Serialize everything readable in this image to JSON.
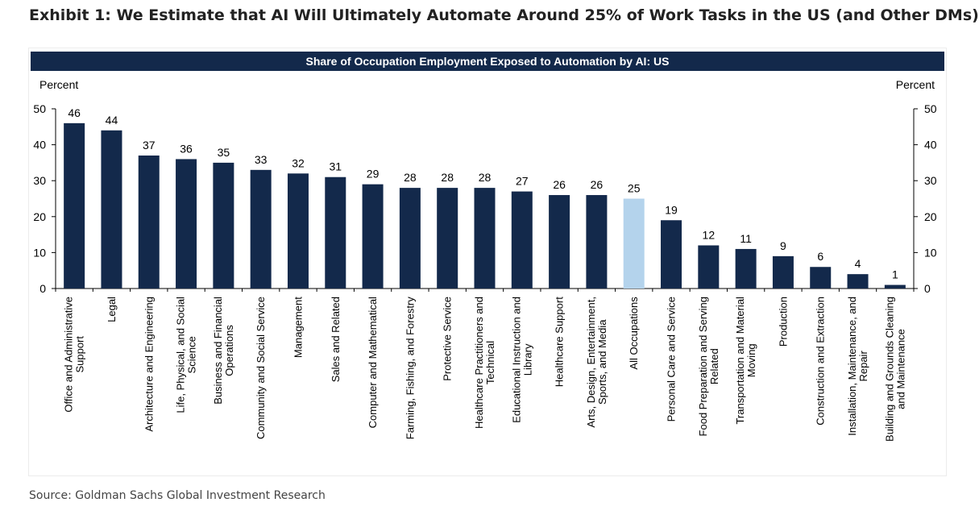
{
  "exhibit": {
    "title": "Exhibit 1: We Estimate that AI Will Ultimately Automate Around 25% of Work Tasks in the US (and Other DMs)",
    "source": "Source: Goldman Sachs Global Investment Research"
  },
  "colors": {
    "bar": "#13294b",
    "highlight_bar": "#b4d3ec",
    "banner": "#13294b"
  },
  "chart_data": {
    "type": "bar",
    "title": "Share of Occupation Employment Exposed to Automation by AI: US",
    "ylabel_left": "Percent",
    "ylabel_right": "Percent",
    "ylim": [
      0,
      50
    ],
    "yticks": [
      0,
      10,
      20,
      30,
      40,
      50
    ],
    "grid": false,
    "highlight_category": "All Occupations",
    "categories": [
      "Office and Administrative Support",
      "Legal",
      "Architecture and Engineering",
      "Life, Physical, and Social Science",
      "Business and Financial Operations",
      "Community and Social Service",
      "Management",
      "Sales and Related",
      "Computer and Mathematical",
      "Farming, Fishing, and Forestry",
      "Protective Service",
      "Healthcare Practitioners and Technical",
      "Educational Instruction and Library",
      "Healthcare Support",
      "Arts, Design, Entertainment, Sports, and Media",
      "All Occupations",
      "Personal Care and Service",
      "Food Preparation and Serving Related",
      "Transportation and Material Moving",
      "Production",
      "Construction and Extraction",
      "Installation, Maintenance, and Repair",
      "Building and Grounds Cleaning and Maintenance"
    ],
    "category_label_lines": [
      [
        "Office and Administrative",
        "Support"
      ],
      [
        "Legal"
      ],
      [
        "Architecture and Engineering"
      ],
      [
        "Life, Physical, and Social",
        "Science"
      ],
      [
        "Business and Financial",
        "Operations"
      ],
      [
        "Community and Social Service"
      ],
      [
        "Management"
      ],
      [
        "Sales and Related"
      ],
      [
        "Computer and Mathematical"
      ],
      [
        "Farming, Fishing, and Forestry"
      ],
      [
        "Protective Service"
      ],
      [
        "Healthcare Practitioners and",
        "Technical"
      ],
      [
        "Educational Instruction and",
        "Library"
      ],
      [
        "Healthcare Support"
      ],
      [
        "Arts, Design, Entertainment,",
        "Sports, and Media"
      ],
      [
        "All Occupations"
      ],
      [
        "Personal Care and Service"
      ],
      [
        "Food Preparation and Serving",
        "Related"
      ],
      [
        "Transportation and Material",
        "Moving"
      ],
      [
        "Production"
      ],
      [
        "Construction and Extraction"
      ],
      [
        "Installation, Maintenance, and",
        "Repair"
      ],
      [
        "Building and Grounds Cleaning",
        "and Maintenance"
      ]
    ],
    "values": [
      46,
      44,
      37,
      36,
      35,
      33,
      32,
      31,
      29,
      28,
      28,
      28,
      27,
      26,
      26,
      25,
      19,
      12,
      11,
      9,
      6,
      4,
      1
    ]
  }
}
